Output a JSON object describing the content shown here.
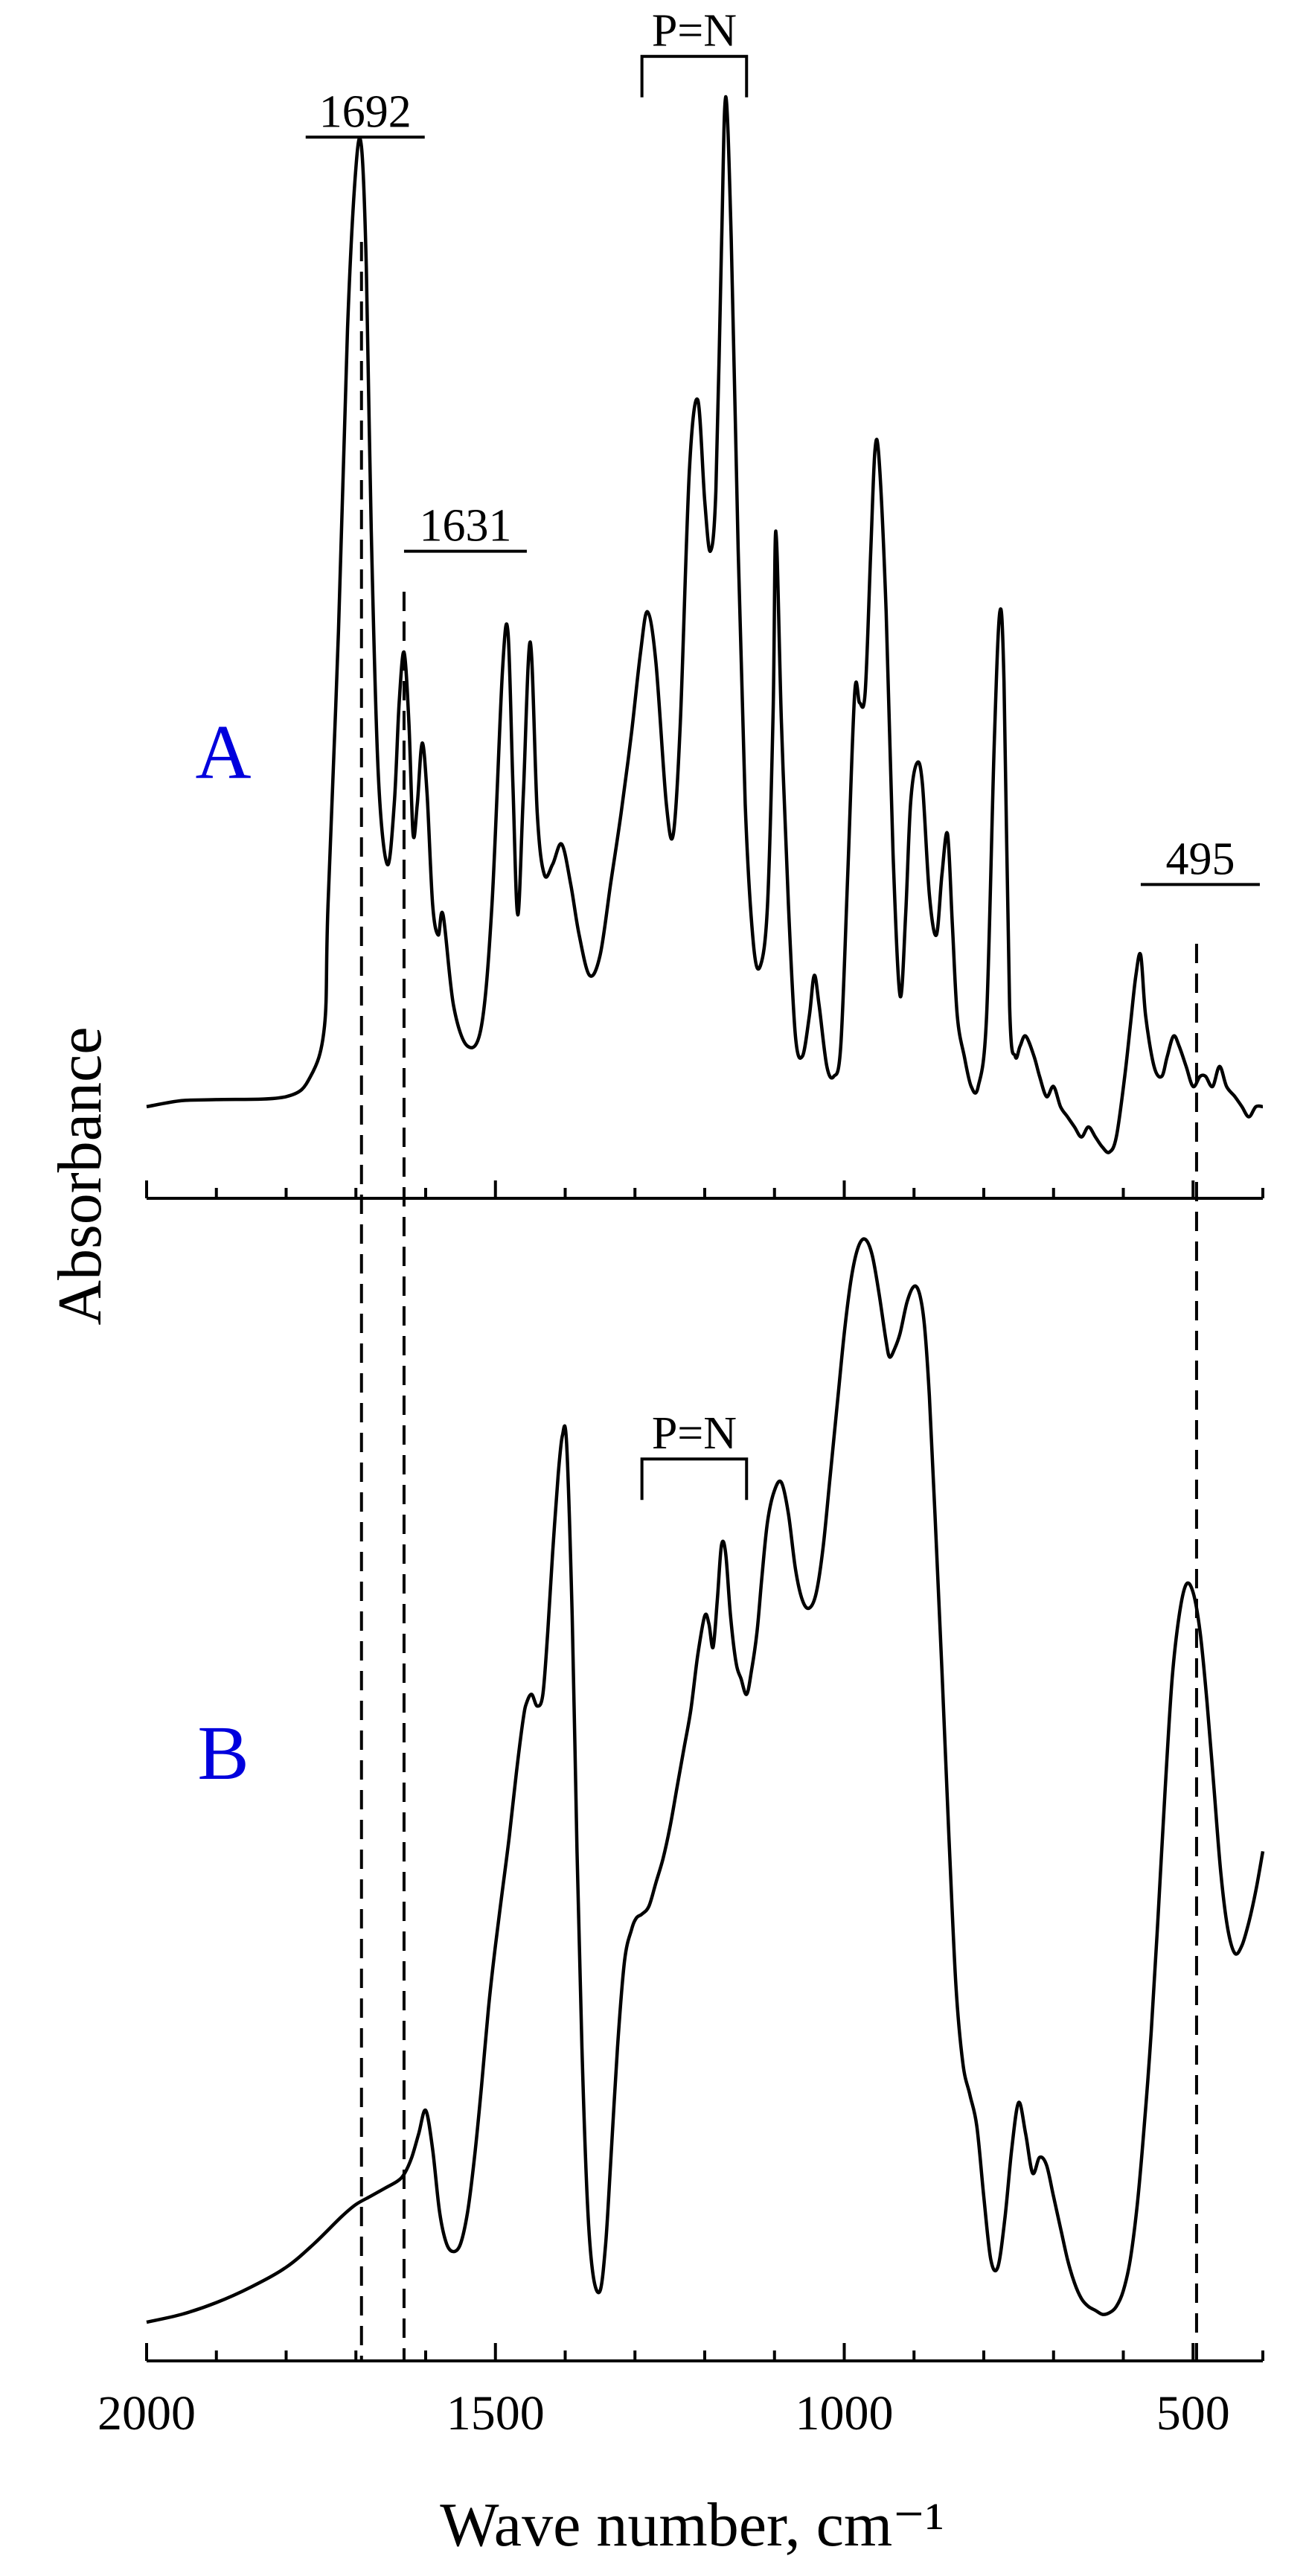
{
  "chart_data": {
    "type": "line",
    "xlabel": "Wave number, cm⁻¹",
    "ylabel": "Absorbance",
    "xlim": [
      2000,
      400
    ],
    "x_reversed": true,
    "x_ticks": [
      2000,
      1500,
      1000,
      500
    ],
    "grid": false,
    "panels": [
      {
        "label": "A",
        "label_color": "#0000dd",
        "series": [
          {
            "x": [
              2000,
              1950,
              1900,
              1800,
              1765,
              1745,
              1740,
              1725,
              1712,
              1700,
              1692,
              1685,
              1678,
              1668,
              1655,
              1645,
              1638,
              1631,
              1624,
              1618,
              1612,
              1605,
              1598,
              1590,
              1582,
              1575,
              1560,
              1540,
              1520,
              1505,
              1490,
              1482,
              1475,
              1468,
              1460,
              1450,
              1440,
              1430,
              1418,
              1405,
              1392,
              1380,
              1365,
              1350,
              1335,
              1320,
              1305,
              1292,
              1282,
              1270,
              1255,
              1245,
              1235,
              1222,
              1210,
              1200,
              1192,
              1184,
              1176,
              1170,
              1162,
              1152,
              1142,
              1130,
              1120,
              1110,
              1102,
              1098,
              1090,
              1080,
              1070,
              1060,
              1050,
              1043,
              1036,
              1025,
              1015,
              1005,
              995,
              985,
              978,
              970,
              962,
              956,
              950,
              940,
              930,
              920,
              912,
              905,
              896,
              888,
              878,
              868,
              860,
              852,
              845,
              838,
              828,
              818,
              808,
              796,
              785,
              777,
              771,
              763,
              755,
              748,
              740,
              728,
              720,
              710,
              700,
              690,
              680,
              670,
              660,
              650,
              640,
              630,
              620,
              610,
              598,
              590,
              582,
              575,
              568,
              556,
              545,
              537,
              528,
              520,
              510,
              500,
              490,
              482,
              472,
              462,
              452,
              440,
              430,
              420,
              410,
              400
            ],
            "y": [
              0.0,
              0.006,
              0.007,
              0.01,
              0.03,
              0.08,
              0.2,
              0.47,
              0.77,
              0.93,
              0.95,
              0.83,
              0.57,
              0.33,
              0.24,
              0.3,
              0.4,
              0.45,
              0.38,
              0.27,
              0.3,
              0.36,
              0.31,
              0.2,
              0.17,
              0.19,
              0.1,
              0.06,
              0.08,
              0.2,
              0.43,
              0.47,
              0.32,
              0.19,
              0.31,
              0.46,
              0.29,
              0.23,
              0.24,
              0.26,
              0.22,
              0.17,
              0.13,
              0.15,
              0.22,
              0.29,
              0.37,
              0.45,
              0.49,
              0.44,
              0.3,
              0.27,
              0.38,
              0.63,
              0.7,
              0.6,
              0.55,
              0.61,
              0.85,
              1.0,
              0.86,
              0.55,
              0.3,
              0.16,
              0.14,
              0.2,
              0.39,
              0.57,
              0.38,
              0.2,
              0.07,
              0.05,
              0.09,
              0.13,
              0.1,
              0.04,
              0.03,
              0.06,
              0.23,
              0.41,
              0.4,
              0.41,
              0.55,
              0.65,
              0.64,
              0.49,
              0.25,
              0.11,
              0.19,
              0.3,
              0.34,
              0.32,
              0.21,
              0.17,
              0.23,
              0.27,
              0.18,
              0.09,
              0.05,
              0.02,
              0.02,
              0.09,
              0.36,
              0.49,
              0.42,
              0.1,
              0.05,
              0.06,
              0.07,
              0.05,
              0.03,
              0.01,
              0.02,
              0.0,
              -0.01,
              -0.02,
              -0.03,
              -0.02,
              -0.03,
              -0.04,
              -0.045,
              -0.03,
              0.03,
              0.08,
              0.13,
              0.15,
              0.09,
              0.04,
              0.03,
              0.05,
              0.07,
              0.06,
              0.04,
              0.02,
              0.03,
              0.03,
              0.02,
              0.04,
              0.02,
              0.01,
              0.0,
              -0.01,
              0.0,
              0.0
            ]
          }
        ],
        "annotations": [
          {
            "text": "1692",
            "x": 1692,
            "type": "vline-bracket",
            "y": 0.96
          },
          {
            "text": "1631",
            "x": 1631,
            "type": "vline-bracket",
            "y": 0.55
          },
          {
            "text": "P=N",
            "x_from": 1290,
            "x_to": 1140,
            "type": "bracket",
            "y": 1.04
          },
          {
            "text": "495",
            "x": 495,
            "type": "vline-bracket",
            "y": 0.22
          }
        ]
      },
      {
        "label": "B",
        "label_color": "#0000dd",
        "series": [
          {
            "x": [
              2000,
              1950,
              1900,
              1850,
              1800,
              1760,
              1720,
              1700,
              1680,
              1660,
              1640,
              1630,
              1620,
              1610,
              1600,
              1590,
              1580,
              1570,
              1560,
              1550,
              1540,
              1530,
              1520,
              1510,
              1500,
              1490,
              1480,
              1470,
              1460,
              1455,
              1448,
              1440,
              1432,
              1425,
              1418,
              1410,
              1404,
              1398,
              1390,
              1383,
              1376,
              1368,
              1360,
              1350,
              1342,
              1335,
              1325,
              1315,
              1305,
              1298,
              1290,
              1280,
              1270,
              1260,
              1250,
              1240,
              1230,
              1220,
              1210,
              1200,
              1194,
              1188,
              1182,
              1176,
              1170,
              1163,
              1155,
              1148,
              1140,
              1133,
              1125,
              1118,
              1110,
              1100,
              1090,
              1080,
              1070,
              1060,
              1050,
              1040,
              1030,
              1020,
              1010,
              1000,
              990,
              980,
              970,
              960,
              950,
              940,
              935,
              928,
              920,
              910,
              900,
              892,
              885,
              878,
              870,
              860,
              850,
              840,
              830,
              820,
              810,
              800,
              790,
              780,
              770,
              760,
              750,
              740,
              730,
              720,
              710,
              700,
              690,
              680,
              670,
              660,
              650,
              640,
              630,
              620,
              610,
              600,
              590,
              580,
              570,
              560,
              550,
              540,
              530,
              520,
              510,
              500,
              490,
              480,
              470,
              460,
              450,
              440,
              430,
              420,
              410,
              400
            ],
            "y": [
              0.0,
              0.01,
              0.025,
              0.045,
              0.07,
              0.1,
              0.135,
              0.15,
              0.16,
              0.17,
              0.18,
              0.19,
              0.21,
              0.24,
              0.27,
              0.22,
              0.14,
              0.1,
              0.09,
              0.1,
              0.14,
              0.21,
              0.3,
              0.4,
              0.48,
              0.55,
              0.62,
              0.7,
              0.77,
              0.79,
              0.8,
              0.785,
              0.8,
              0.88,
              0.98,
              1.08,
              1.13,
              1.12,
              0.9,
              0.6,
              0.35,
              0.15,
              0.06,
              0.04,
              0.1,
              0.2,
              0.35,
              0.46,
              0.5,
              0.515,
              0.52,
              0.53,
              0.56,
              0.59,
              0.63,
              0.68,
              0.73,
              0.78,
              0.85,
              0.9,
              0.89,
              0.86,
              0.92,
              0.99,
              0.98,
              0.9,
              0.84,
              0.82,
              0.8,
              0.83,
              0.88,
              0.95,
              1.02,
              1.06,
              1.07,
              1.03,
              0.96,
              0.92,
              0.91,
              0.93,
              0.99,
              1.08,
              1.17,
              1.26,
              1.33,
              1.37,
              1.38,
              1.36,
              1.31,
              1.25,
              1.23,
              1.24,
              1.26,
              1.3,
              1.32,
              1.31,
              1.27,
              1.18,
              1.03,
              0.83,
              0.62,
              0.43,
              0.33,
              0.29,
              0.25,
              0.16,
              0.08,
              0.07,
              0.13,
              0.22,
              0.28,
              0.24,
              0.19,
              0.21,
              0.2,
              0.16,
              0.12,
              0.08,
              0.05,
              0.03,
              0.02,
              0.015,
              0.01,
              0.012,
              0.02,
              0.04,
              0.08,
              0.15,
              0.25,
              0.37,
              0.52,
              0.68,
              0.82,
              0.9,
              0.94,
              0.93,
              0.88,
              0.79,
              0.68,
              0.57,
              0.5,
              0.47,
              0.48,
              0.51,
              0.55,
              0.6
            ]
          }
        ],
        "annotations": [
          {
            "text": "P=N",
            "x_from": 1290,
            "x_to": 1140,
            "type": "bracket",
            "y": 1.1
          }
        ]
      }
    ],
    "dashed_guides": [
      1692,
      1631,
      495
    ]
  }
}
